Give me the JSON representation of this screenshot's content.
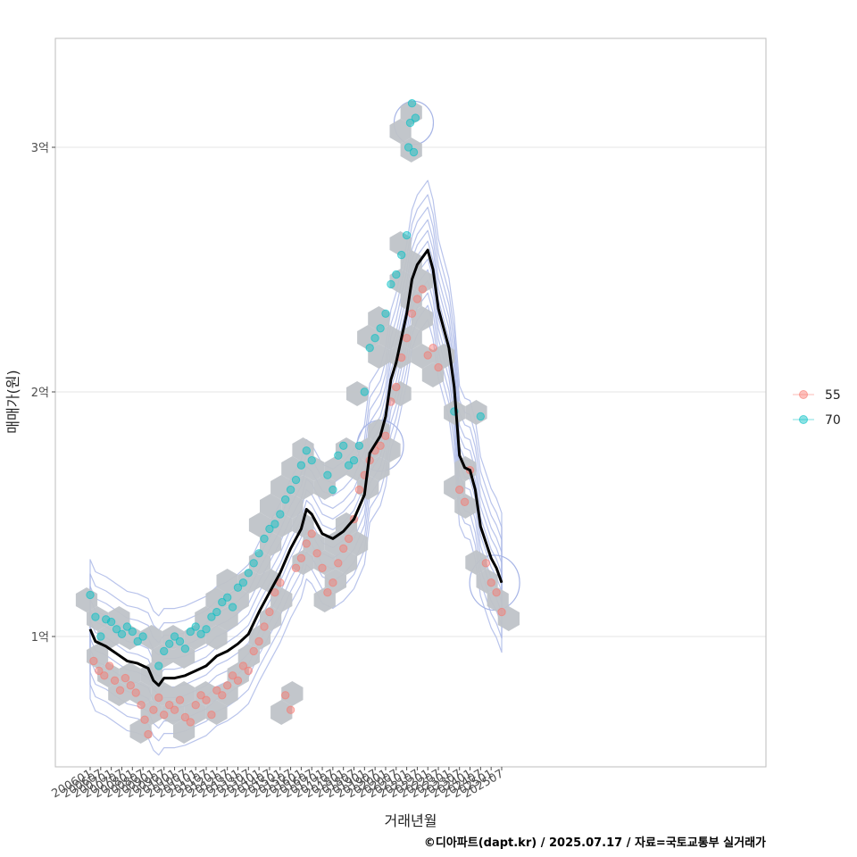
{
  "chart_data": {
    "type": "scatter",
    "title": "",
    "xlabel": "거래년월",
    "ylabel": "매매가(원)",
    "caption": "©디아파트(dapt.kr) / 2025.07.17 / 자료=국토교통부 실거래가",
    "x_ticks": [
      "200601",
      "200607",
      "200701",
      "200707",
      "200801",
      "200807",
      "200901",
      "200907",
      "201001",
      "201007",
      "201101",
      "201107",
      "201201",
      "201207",
      "201301",
      "201307",
      "201401",
      "201407",
      "201501",
      "201507",
      "201601",
      "201607",
      "201701",
      "201707",
      "201801",
      "201807",
      "201901",
      "201907",
      "202001",
      "202007",
      "202101",
      "202107",
      "202201",
      "202207",
      "202301",
      "202307",
      "202401",
      "202407",
      "202501",
      "202507"
    ],
    "y_ticks": [
      {
        "value": 100000000,
        "label": "1억"
      },
      {
        "value": 200000000,
        "label": "2억"
      },
      {
        "value": 300000000,
        "label": "3억"
      }
    ],
    "ylim": [
      50000000,
      345000000
    ],
    "grid": true,
    "legend_position": "right",
    "series": [
      {
        "name": "55",
        "color": "#F8766D",
        "points": [
          [
            "2006-03",
            90000000
          ],
          [
            "2006-06",
            86000000
          ],
          [
            "2006-09",
            84000000
          ],
          [
            "2006-12",
            88000000
          ],
          [
            "2007-03",
            82000000
          ],
          [
            "2007-06",
            78000000
          ],
          [
            "2007-09",
            83000000
          ],
          [
            "2007-12",
            80000000
          ],
          [
            "2008-03",
            77000000
          ],
          [
            "2008-06",
            72000000
          ],
          [
            "2008-08",
            66000000
          ],
          [
            "2008-10",
            60000000
          ],
          [
            "2009-01",
            70000000
          ],
          [
            "2009-04",
            75000000
          ],
          [
            "2009-07",
            68000000
          ],
          [
            "2009-10",
            72000000
          ],
          [
            "2010-01",
            70000000
          ],
          [
            "2010-04",
            74000000
          ],
          [
            "2010-07",
            67000000
          ],
          [
            "2010-10",
            65000000
          ],
          [
            "2011-01",
            72000000
          ],
          [
            "2011-04",
            76000000
          ],
          [
            "2011-07",
            74000000
          ],
          [
            "2011-10",
            68000000
          ],
          [
            "2012-01",
            78000000
          ],
          [
            "2012-04",
            76000000
          ],
          [
            "2012-07",
            80000000
          ],
          [
            "2012-10",
            84000000
          ],
          [
            "2013-01",
            82000000
          ],
          [
            "2013-04",
            88000000
          ],
          [
            "2013-07",
            86000000
          ],
          [
            "2013-10",
            94000000
          ],
          [
            "2014-01",
            98000000
          ],
          [
            "2014-04",
            104000000
          ],
          [
            "2014-07",
            110000000
          ],
          [
            "2014-10",
            118000000
          ],
          [
            "2015-01",
            122000000
          ],
          [
            "2015-04",
            76000000
          ],
          [
            "2015-07",
            70000000
          ],
          [
            "2015-10",
            128000000
          ],
          [
            "2016-01",
            132000000
          ],
          [
            "2016-04",
            138000000
          ],
          [
            "2016-07",
            142000000
          ],
          [
            "2016-10",
            134000000
          ],
          [
            "2017-01",
            128000000
          ],
          [
            "2017-04",
            118000000
          ],
          [
            "2017-07",
            122000000
          ],
          [
            "2017-10",
            130000000
          ],
          [
            "2018-01",
            136000000
          ],
          [
            "2018-04",
            140000000
          ],
          [
            "2018-07",
            148000000
          ],
          [
            "2018-10",
            160000000
          ],
          [
            "2019-01",
            166000000
          ],
          [
            "2019-04",
            172000000
          ],
          [
            "2019-07",
            176000000
          ],
          [
            "2019-10",
            178000000
          ],
          [
            "2020-01",
            182000000
          ],
          [
            "2020-04",
            196000000
          ],
          [
            "2020-07",
            202000000
          ],
          [
            "2020-10",
            214000000
          ],
          [
            "2021-01",
            222000000
          ],
          [
            "2021-04",
            232000000
          ],
          [
            "2021-07",
            238000000
          ],
          [
            "2021-10",
            242000000
          ],
          [
            "2022-01",
            215000000
          ],
          [
            "2022-04",
            218000000
          ],
          [
            "2022-07",
            210000000
          ],
          [
            "2023-07",
            160000000
          ],
          [
            "2023-10",
            155000000
          ],
          [
            "2024-01",
            168000000
          ],
          [
            "2024-10",
            130000000
          ],
          [
            "2025-01",
            122000000
          ],
          [
            "2025-04",
            118000000
          ],
          [
            "2025-07",
            110000000
          ]
        ]
      },
      {
        "name": "70",
        "color": "#00BFC4",
        "points": [
          [
            "2006-01",
            117000000
          ],
          [
            "2006-04",
            108000000
          ],
          [
            "2006-07",
            100000000
          ],
          [
            "2006-10",
            107000000
          ],
          [
            "2007-01",
            106000000
          ],
          [
            "2007-04",
            103000000
          ],
          [
            "2007-07",
            101000000
          ],
          [
            "2007-10",
            104000000
          ],
          [
            "2008-01",
            102000000
          ],
          [
            "2008-04",
            98000000
          ],
          [
            "2008-07",
            100000000
          ],
          [
            "2009-04",
            88000000
          ],
          [
            "2009-07",
            94000000
          ],
          [
            "2009-10",
            97000000
          ],
          [
            "2010-01",
            100000000
          ],
          [
            "2010-04",
            98000000
          ],
          [
            "2010-07",
            95000000
          ],
          [
            "2010-10",
            102000000
          ],
          [
            "2011-01",
            104000000
          ],
          [
            "2011-04",
            101000000
          ],
          [
            "2011-07",
            103000000
          ],
          [
            "2011-10",
            108000000
          ],
          [
            "2012-01",
            110000000
          ],
          [
            "2012-04",
            114000000
          ],
          [
            "2012-07",
            116000000
          ],
          [
            "2012-10",
            112000000
          ],
          [
            "2013-01",
            120000000
          ],
          [
            "2013-04",
            122000000
          ],
          [
            "2013-07",
            126000000
          ],
          [
            "2013-10",
            130000000
          ],
          [
            "2014-01",
            134000000
          ],
          [
            "2014-04",
            140000000
          ],
          [
            "2014-07",
            144000000
          ],
          [
            "2014-10",
            146000000
          ],
          [
            "2015-01",
            150000000
          ],
          [
            "2015-04",
            156000000
          ],
          [
            "2015-07",
            160000000
          ],
          [
            "2015-10",
            164000000
          ],
          [
            "2016-01",
            170000000
          ],
          [
            "2016-04",
            176000000
          ],
          [
            "2016-07",
            172000000
          ],
          [
            "2017-04",
            166000000
          ],
          [
            "2017-07",
            160000000
          ],
          [
            "2017-10",
            174000000
          ],
          [
            "2018-01",
            178000000
          ],
          [
            "2018-04",
            170000000
          ],
          [
            "2018-07",
            172000000
          ],
          [
            "2018-10",
            178000000
          ],
          [
            "2019-01",
            200000000
          ],
          [
            "2019-04",
            218000000
          ],
          [
            "2019-07",
            222000000
          ],
          [
            "2019-10",
            226000000
          ],
          [
            "2020-01",
            232000000
          ],
          [
            "2020-04",
            244000000
          ],
          [
            "2020-07",
            248000000
          ],
          [
            "2020-10",
            256000000
          ],
          [
            "2021-01",
            264000000
          ],
          [
            "2021-02",
            300000000
          ],
          [
            "2021-03",
            310000000
          ],
          [
            "2021-04",
            318000000
          ],
          [
            "2021-05",
            298000000
          ],
          [
            "2021-06",
            312000000
          ],
          [
            "2023-04",
            192000000
          ],
          [
            "2024-07",
            190000000
          ]
        ]
      }
    ],
    "trend_line": {
      "name": "",
      "color": "#000000",
      "points": [
        [
          "2006-01",
          103000000
        ],
        [
          "2006-04",
          98000000
        ],
        [
          "2006-10",
          96000000
        ],
        [
          "2007-04",
          93000000
        ],
        [
          "2007-10",
          90000000
        ],
        [
          "2008-04",
          89000000
        ],
        [
          "2008-10",
          87000000
        ],
        [
          "2009-01",
          82000000
        ],
        [
          "2009-04",
          80000000
        ],
        [
          "2009-07",
          83000000
        ],
        [
          "2010-01",
          83000000
        ],
        [
          "2010-07",
          84000000
        ],
        [
          "2011-01",
          86000000
        ],
        [
          "2011-07",
          88000000
        ],
        [
          "2012-01",
          92000000
        ],
        [
          "2012-07",
          94000000
        ],
        [
          "2013-01",
          97000000
        ],
        [
          "2013-07",
          101000000
        ],
        [
          "2014-01",
          110000000
        ],
        [
          "2014-07",
          118000000
        ],
        [
          "2015-01",
          126000000
        ],
        [
          "2015-07",
          136000000
        ],
        [
          "2016-01",
          144000000
        ],
        [
          "2016-04",
          152000000
        ],
        [
          "2016-07",
          150000000
        ],
        [
          "2017-01",
          142000000
        ],
        [
          "2017-07",
          140000000
        ],
        [
          "2018-01",
          143000000
        ],
        [
          "2018-07",
          148000000
        ],
        [
          "2019-01",
          158000000
        ],
        [
          "2019-04",
          175000000
        ],
        [
          "2019-10",
          182000000
        ],
        [
          "2020-01",
          190000000
        ],
        [
          "2020-04",
          205000000
        ],
        [
          "2020-07",
          212000000
        ],
        [
          "2020-10",
          222000000
        ],
        [
          "2021-01",
          232000000
        ],
        [
          "2021-04",
          246000000
        ],
        [
          "2021-07",
          252000000
        ],
        [
          "2021-10",
          255000000
        ],
        [
          "2022-01",
          258000000
        ],
        [
          "2022-04",
          250000000
        ],
        [
          "2022-07",
          234000000
        ],
        [
          "2023-01",
          218000000
        ],
        [
          "2023-04",
          202000000
        ],
        [
          "2023-07",
          174000000
        ],
        [
          "2023-10",
          169000000
        ],
        [
          "2024-01",
          168000000
        ],
        [
          "2024-04",
          160000000
        ],
        [
          "2024-07",
          145000000
        ],
        [
          "2025-01",
          132000000
        ],
        [
          "2025-04",
          128000000
        ],
        [
          "2025-07",
          122000000
        ]
      ]
    }
  }
}
